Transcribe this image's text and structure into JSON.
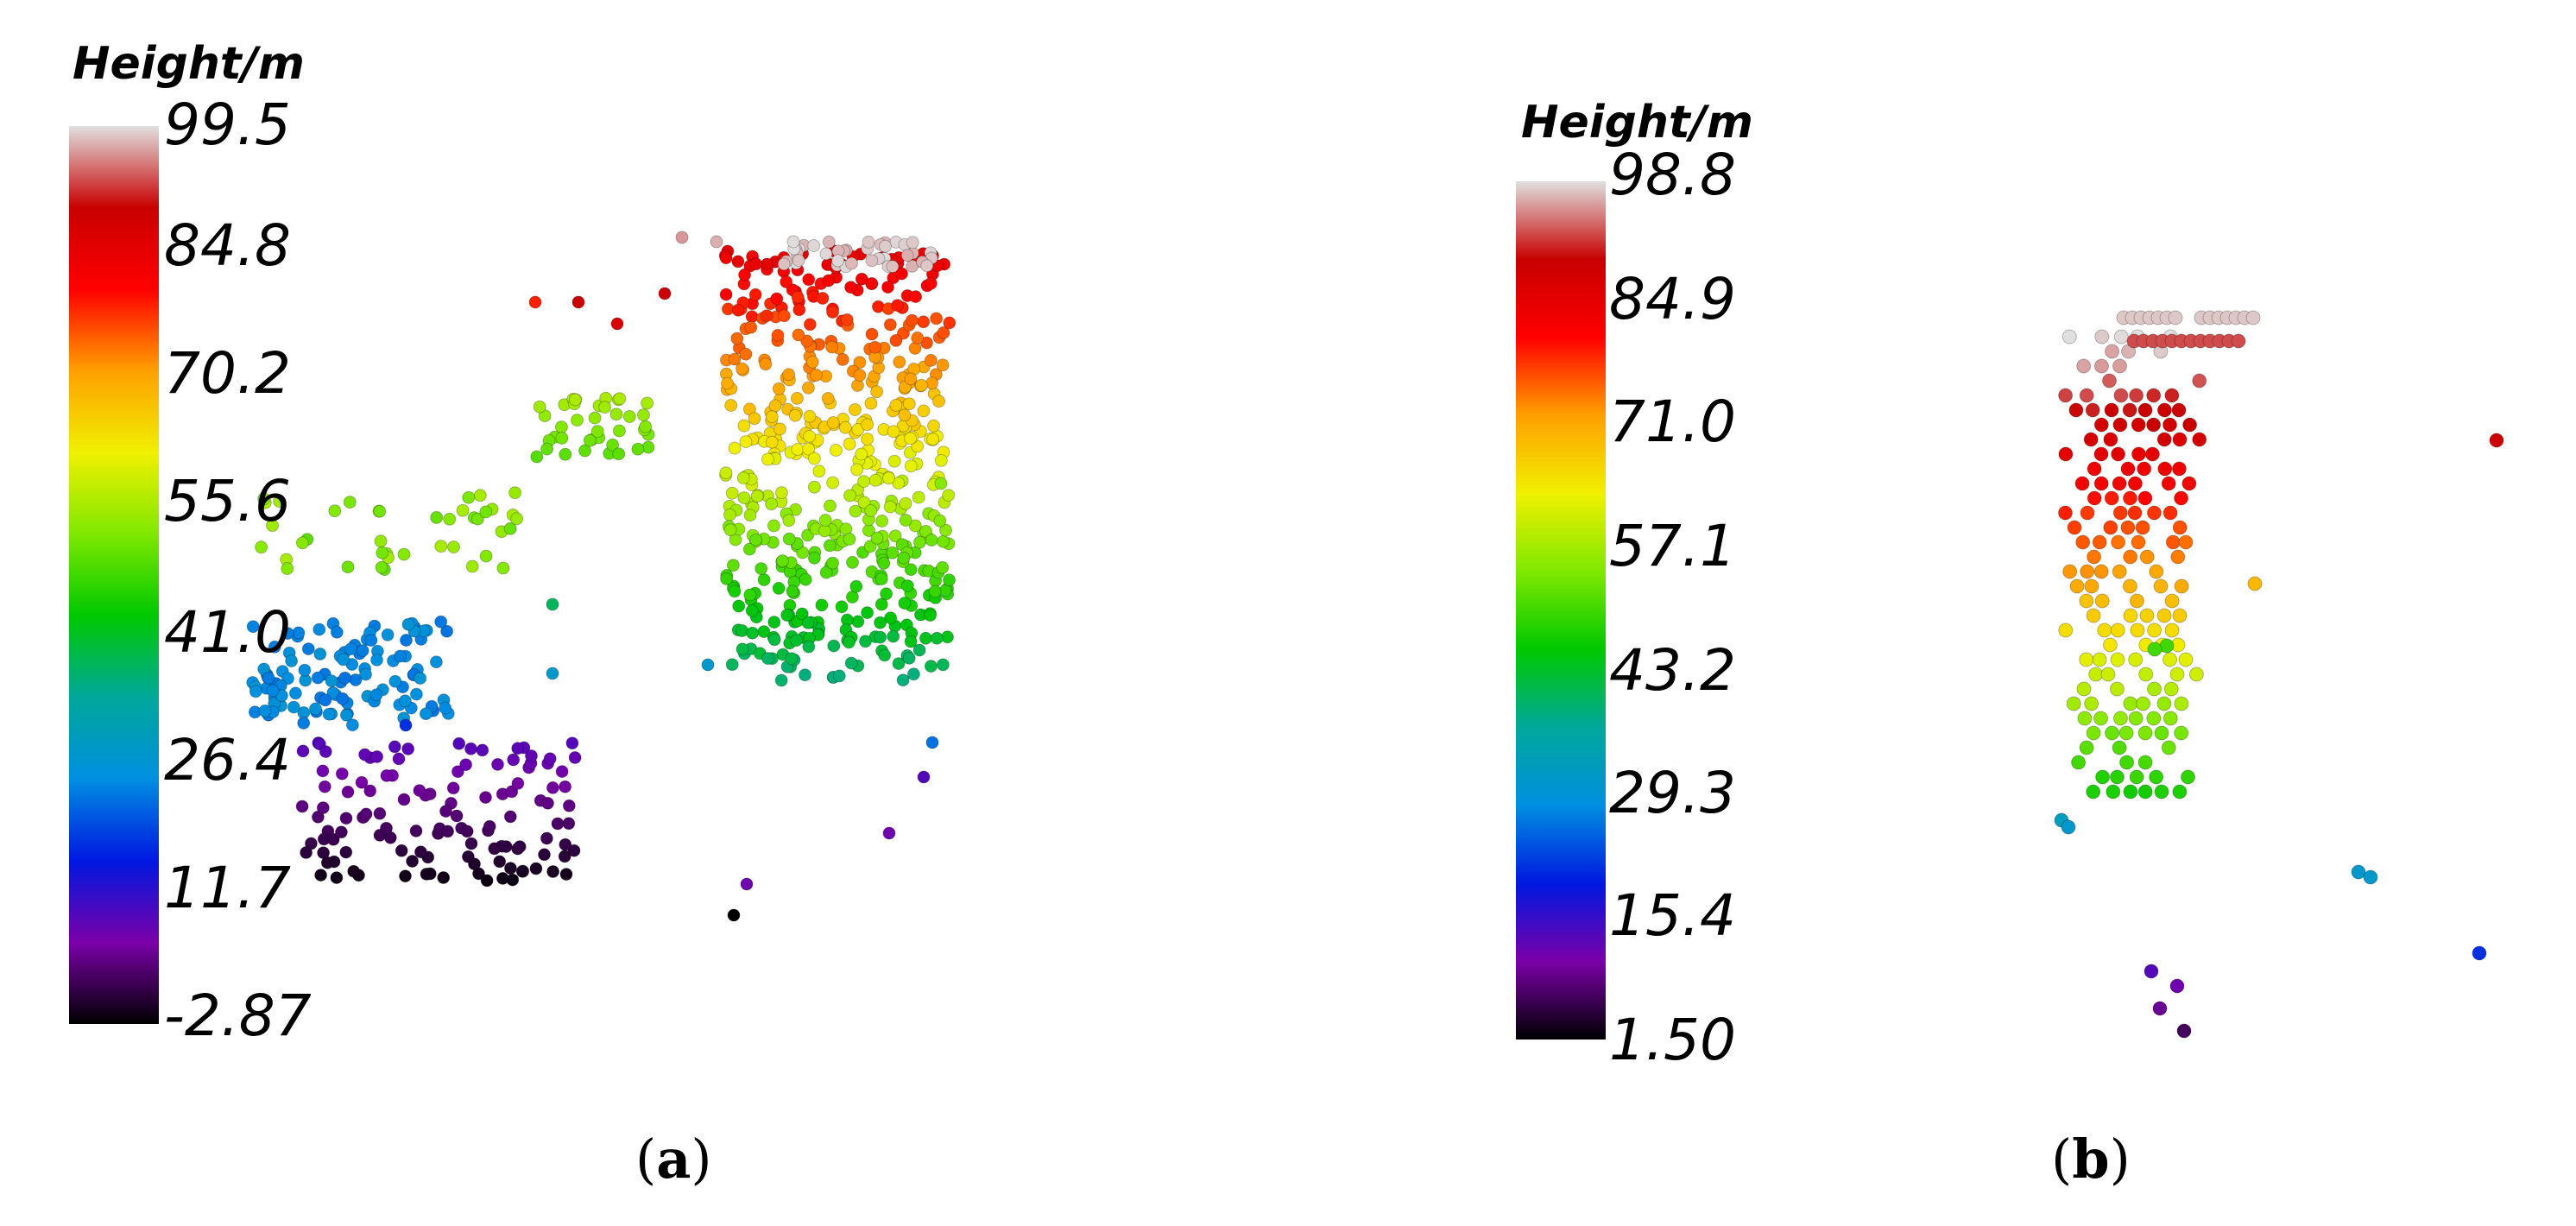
{
  "chart_data": [
    {
      "type": "scatter",
      "panel_label": "a",
      "colorbar": {
        "title": "Height/m",
        "ticks": [
          "99.5",
          "84.8",
          "70.2",
          "55.6",
          "41.0",
          "26.4",
          "11.7",
          "-2.87"
        ],
        "range": [
          -2.87,
          99.5
        ]
      },
      "height_values": [
        99.5,
        84.8,
        70.2,
        55.6,
        41.0,
        26.4,
        11.7,
        -2.87
      ]
    },
    {
      "type": "scatter",
      "panel_label": "b",
      "colorbar": {
        "title": "Height/m",
        "ticks": [
          "98.8",
          "84.9",
          "71.0",
          "57.1",
          "43.2",
          "29.3",
          "15.4",
          "1.50"
        ],
        "range": [
          1.5,
          98.8
        ]
      },
      "height_values": [
        98.8,
        84.9,
        71.0,
        57.1,
        43.2,
        29.3,
        15.4,
        1.5
      ]
    }
  ],
  "colormap": [
    "#000000",
    "#7a00a8",
    "#0018e0",
    "#008fe0",
    "#00a89a",
    "#00c800",
    "#7fe800",
    "#f0f000",
    "#ffa000",
    "#ff0000",
    "#c80000",
    "#e0e0e0"
  ]
}
